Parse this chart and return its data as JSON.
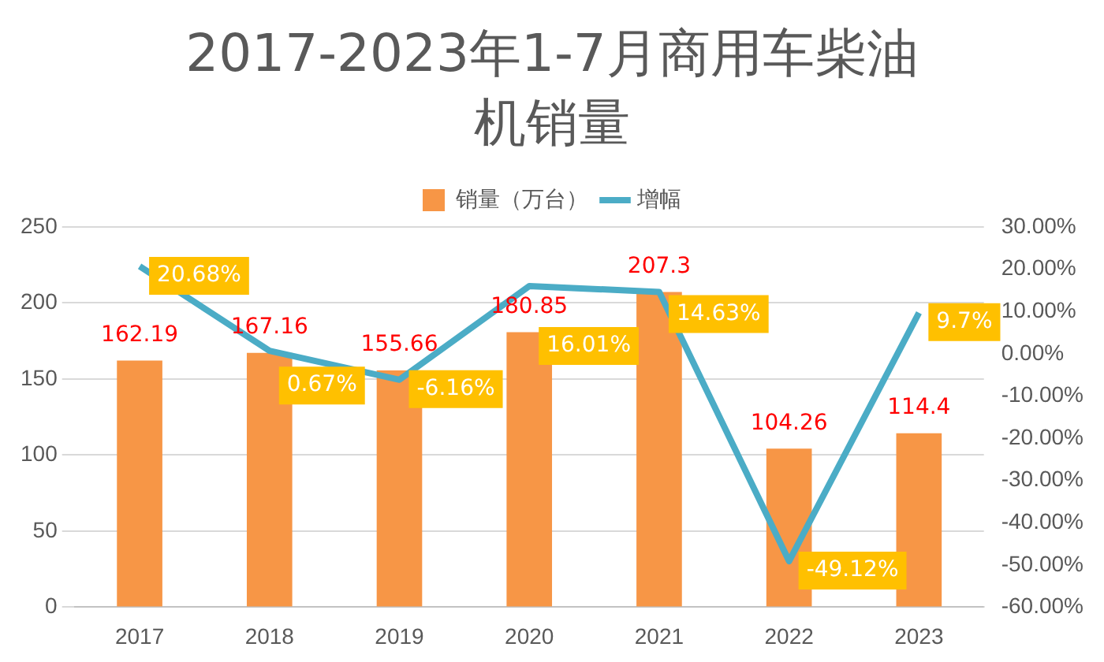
{
  "chart_data": {
    "type": "bar",
    "title": "2017-2023年1-7月商用车柴油机销量",
    "categories": [
      "2017",
      "2018",
      "2019",
      "2020",
      "2021",
      "2022",
      "2023"
    ],
    "series": [
      {
        "name": "销量（万台）",
        "color": "#f79646",
        "values": [
          162.19,
          167.16,
          155.66,
          180.85,
          207.3,
          104.26,
          114.4
        ]
      },
      {
        "name": "增幅",
        "type": "line",
        "axis": "y2",
        "color": "#4bacc6",
        "values": [
          20.68,
          0.67,
          -6.16,
          16.01,
          14.63,
          -49.12,
          9.7
        ],
        "value_labels": [
          "20.68%",
          "0.67%",
          "-6.16%",
          "16.01%",
          "14.63%",
          "-49.12%",
          "9.7%"
        ]
      }
    ],
    "data_labels": true,
    "ylim": [
      0,
      250
    ],
    "yticks": [
      0,
      50,
      100,
      150,
      200,
      250
    ],
    "y2lim": [
      -60,
      30
    ],
    "y2ticks": [
      {
        "value": -60,
        "label": "-60.00%"
      },
      {
        "value": -50,
        "label": "-50.00%"
      },
      {
        "value": -40,
        "label": "-40.00%"
      },
      {
        "value": -30,
        "label": "-30.00%"
      },
      {
        "value": -20,
        "label": "-20.00%"
      },
      {
        "value": -10,
        "label": "-10.00%"
      },
      {
        "value": 0,
        "label": "0.00%"
      },
      {
        "value": 10,
        "label": "10.00%"
      },
      {
        "value": 20,
        "label": "20.00%"
      },
      {
        "value": 30,
        "label": "30.00%"
      }
    ],
    "grid": "y",
    "legend": "top",
    "marker": "none"
  }
}
